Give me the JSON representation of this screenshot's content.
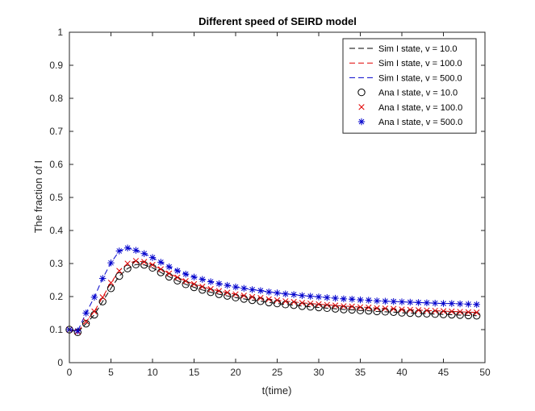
{
  "chart_data": {
    "type": "line",
    "title": "Different speed of SEIRD model",
    "xlabel": "t(time)",
    "ylabel": "The fraction of I",
    "xlim": [
      0,
      50
    ],
    "ylim": [
      0,
      1
    ],
    "xticks": [
      "0",
      "5",
      "10",
      "15",
      "20",
      "25",
      "30",
      "35",
      "40",
      "45",
      "50"
    ],
    "yticks": [
      "0",
      "0.1",
      "0.2",
      "0.3",
      "0.4",
      "0.5",
      "0.6",
      "0.7",
      "0.8",
      "0.9",
      "1"
    ],
    "grid": false,
    "legend_position": "top-right",
    "x": [
      0,
      1,
      2,
      3,
      4,
      5,
      6,
      7,
      8,
      9,
      10,
      11,
      12,
      13,
      14,
      15,
      16,
      17,
      18,
      19,
      20,
      21,
      22,
      23,
      24,
      25,
      26,
      27,
      28,
      29,
      30,
      31,
      32,
      33,
      34,
      35,
      36,
      37,
      38,
      39,
      40,
      41,
      42,
      43,
      44,
      45,
      46,
      47,
      48,
      49
    ],
    "series": [
      {
        "name": "Sim I state, v = 10.0",
        "style": "dashed-line",
        "color": "#000000",
        "values": [
          0.1,
          0.092,
          0.118,
          0.145,
          0.185,
          0.225,
          0.262,
          0.285,
          0.297,
          0.296,
          0.287,
          0.273,
          0.26,
          0.248,
          0.237,
          0.228,
          0.22,
          0.213,
          0.207,
          0.202,
          0.197,
          0.193,
          0.189,
          0.186,
          0.182,
          0.179,
          0.176,
          0.174,
          0.171,
          0.169,
          0.167,
          0.165,
          0.163,
          0.161,
          0.16,
          0.158,
          0.157,
          0.155,
          0.154,
          0.153,
          0.151,
          0.15,
          0.149,
          0.148,
          0.147,
          0.146,
          0.145,
          0.144,
          0.143,
          0.142
        ]
      },
      {
        "name": "Sim I state, v = 100.0",
        "style": "dashed-line",
        "color": "#e00000",
        "values": [
          0.1,
          0.094,
          0.125,
          0.155,
          0.198,
          0.242,
          0.278,
          0.3,
          0.308,
          0.305,
          0.296,
          0.283,
          0.27,
          0.258,
          0.247,
          0.238,
          0.23,
          0.223,
          0.217,
          0.212,
          0.207,
          0.203,
          0.199,
          0.196,
          0.192,
          0.189,
          0.186,
          0.184,
          0.181,
          0.179,
          0.177,
          0.175,
          0.173,
          0.171,
          0.17,
          0.168,
          0.167,
          0.165,
          0.164,
          0.163,
          0.161,
          0.16,
          0.159,
          0.158,
          0.157,
          0.156,
          0.155,
          0.154,
          0.153,
          0.152
        ]
      },
      {
        "name": "Sim I state, v = 500.0",
        "style": "dashed-line",
        "color": "#0000cc",
        "values": [
          0.1,
          0.096,
          0.15,
          0.198,
          0.255,
          0.302,
          0.338,
          0.347,
          0.34,
          0.33,
          0.318,
          0.304,
          0.29,
          0.278,
          0.268,
          0.259,
          0.252,
          0.245,
          0.239,
          0.234,
          0.229,
          0.225,
          0.221,
          0.218,
          0.214,
          0.211,
          0.208,
          0.206,
          0.203,
          0.201,
          0.199,
          0.197,
          0.195,
          0.193,
          0.192,
          0.19,
          0.189,
          0.187,
          0.186,
          0.185,
          0.184,
          0.183,
          0.182,
          0.181,
          0.18,
          0.179,
          0.179,
          0.178,
          0.177,
          0.176
        ]
      },
      {
        "name": "Ana I state, v = 10.0",
        "style": "circle-marker",
        "color": "#000000",
        "values": [
          0.1,
          0.092,
          0.118,
          0.145,
          0.185,
          0.225,
          0.262,
          0.285,
          0.297,
          0.296,
          0.287,
          0.273,
          0.26,
          0.248,
          0.237,
          0.228,
          0.22,
          0.213,
          0.207,
          0.202,
          0.197,
          0.193,
          0.189,
          0.186,
          0.182,
          0.179,
          0.176,
          0.174,
          0.171,
          0.169,
          0.167,
          0.165,
          0.163,
          0.161,
          0.16,
          0.158,
          0.157,
          0.155,
          0.154,
          0.153,
          0.151,
          0.15,
          0.149,
          0.148,
          0.147,
          0.146,
          0.145,
          0.144,
          0.143,
          0.142
        ]
      },
      {
        "name": "Ana I state, v = 100.0",
        "style": "x-marker",
        "color": "#e00000",
        "values": [
          0.1,
          0.094,
          0.125,
          0.155,
          0.198,
          0.242,
          0.278,
          0.3,
          0.308,
          0.305,
          0.296,
          0.283,
          0.27,
          0.258,
          0.247,
          0.238,
          0.23,
          0.223,
          0.217,
          0.212,
          0.207,
          0.203,
          0.199,
          0.196,
          0.192,
          0.189,
          0.186,
          0.184,
          0.181,
          0.179,
          0.177,
          0.175,
          0.173,
          0.171,
          0.17,
          0.168,
          0.167,
          0.165,
          0.164,
          0.163,
          0.161,
          0.16,
          0.159,
          0.158,
          0.157,
          0.156,
          0.155,
          0.154,
          0.153,
          0.152
        ]
      },
      {
        "name": "Ana I state, v = 500.0",
        "style": "star-marker",
        "color": "#0000cc",
        "values": [
          0.1,
          0.096,
          0.15,
          0.198,
          0.255,
          0.302,
          0.338,
          0.347,
          0.34,
          0.33,
          0.318,
          0.304,
          0.29,
          0.278,
          0.268,
          0.259,
          0.252,
          0.245,
          0.239,
          0.234,
          0.229,
          0.225,
          0.221,
          0.218,
          0.214,
          0.211,
          0.208,
          0.206,
          0.203,
          0.201,
          0.199,
          0.197,
          0.195,
          0.193,
          0.192,
          0.19,
          0.189,
          0.187,
          0.186,
          0.185,
          0.184,
          0.183,
          0.182,
          0.181,
          0.18,
          0.179,
          0.179,
          0.178,
          0.177,
          0.176
        ]
      }
    ]
  }
}
